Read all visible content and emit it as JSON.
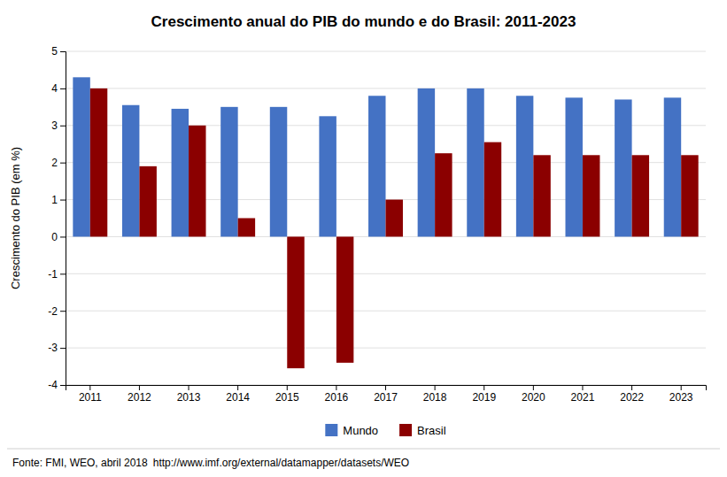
{
  "chart_data": {
    "type": "bar",
    "title": "Crescimento anual do PIB do mundo e do Brasil: 2011-2023",
    "categories": [
      "2011",
      "2012",
      "2013",
      "2014",
      "2015",
      "2016",
      "2017",
      "2018",
      "2019",
      "2020",
      "2021",
      "2022",
      "2023"
    ],
    "series": [
      {
        "name": "Mundo",
        "color": "#4472C4",
        "values": [
          4.3,
          3.55,
          3.45,
          3.5,
          3.5,
          3.25,
          3.8,
          4.0,
          4.0,
          3.8,
          3.75,
          3.7,
          3.75
        ]
      },
      {
        "name": "Brasil",
        "color": "#8B0000",
        "values": [
          4.0,
          1.9,
          3.0,
          0.5,
          -3.55,
          -3.4,
          1.0,
          2.25,
          2.55,
          2.2,
          2.2,
          2.2,
          2.2
        ]
      }
    ],
    "ylabel": "Crescimento do PIB (em %)",
    "ylim": [
      -4,
      5
    ],
    "yticks": [
      -4,
      -3,
      -2,
      -1,
      0,
      1,
      2,
      3,
      4,
      5
    ],
    "grid": true,
    "legend": "bottom",
    "annotations": [
      "Fonte: FMI, WEO, abril 2018",
      "http://www.imf.org/external/datamapper/datasets/WEO"
    ]
  }
}
